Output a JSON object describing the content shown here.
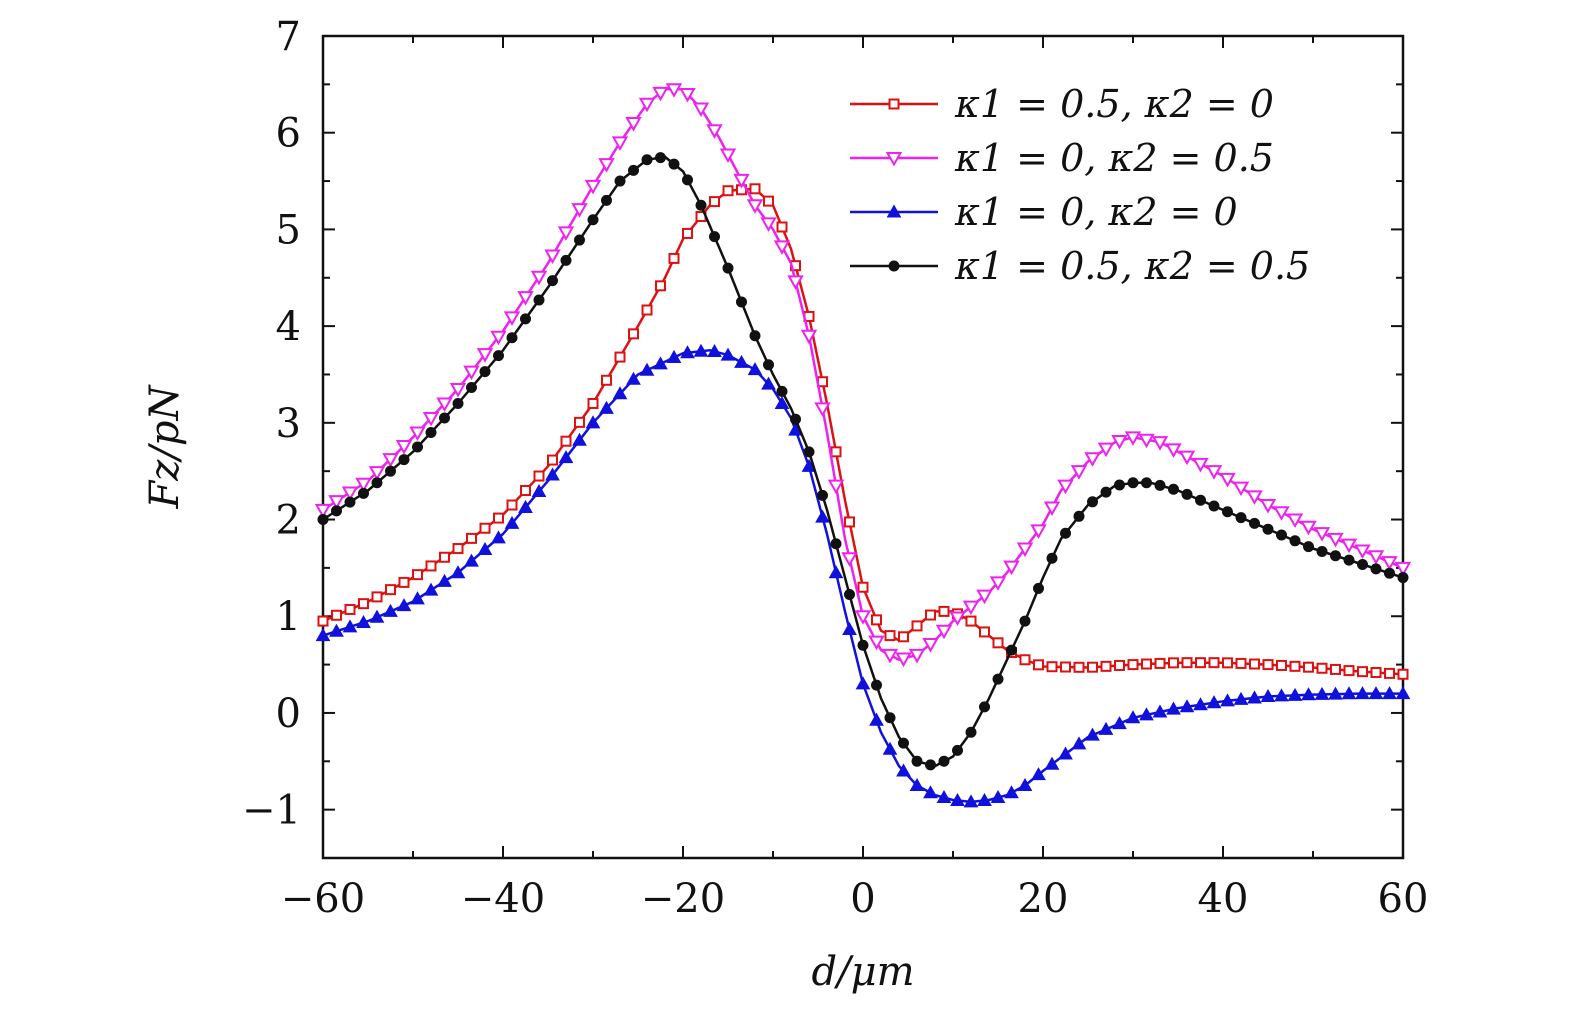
{
  "chart_data": {
    "type": "line",
    "title": "",
    "xlabel": "d/μm",
    "ylabel": "Fz/pN",
    "xlim": [
      -60,
      60
    ],
    "ylim": [
      -1.5,
      7
    ],
    "x_ticks": [
      -60,
      -40,
      -20,
      0,
      20,
      40,
      60
    ],
    "x_tick_labels": [
      "−60",
      "−40",
      "−20",
      "0",
      "20",
      "40",
      "60"
    ],
    "y_ticks": [
      -1,
      0,
      1,
      2,
      3,
      4,
      5,
      6,
      7
    ],
    "y_tick_labels": [
      "−1",
      "0",
      "1",
      "2",
      "3",
      "4",
      "5",
      "6",
      "7"
    ],
    "legend_position": "top-right",
    "grid": false,
    "series": [
      {
        "name": "κ1 = 0.5, κ2 = 0",
        "color": "#dd1111",
        "marker": "square-open",
        "x": [
          -60,
          -55,
          -50,
          -45,
          -40,
          -35,
          -30,
          -25,
          -22,
          -20,
          -17,
          -15,
          -12,
          -10,
          -8,
          -6,
          -4,
          -2,
          0,
          2,
          4,
          6,
          8,
          10,
          12,
          14,
          16,
          18,
          20,
          25,
          30,
          35,
          40,
          45,
          50,
          55,
          60
        ],
        "y": [
          0.95,
          1.15,
          1.4,
          1.7,
          2.05,
          2.55,
          3.2,
          4.0,
          4.5,
          4.9,
          5.25,
          5.4,
          5.42,
          5.25,
          4.8,
          4.1,
          3.2,
          2.2,
          1.3,
          0.85,
          0.75,
          0.9,
          1.05,
          1.05,
          0.95,
          0.8,
          0.65,
          0.55,
          0.48,
          0.47,
          0.5,
          0.52,
          0.52,
          0.5,
          0.47,
          0.43,
          0.4
        ]
      },
      {
        "name": "κ1 = 0, κ2 = 0.5",
        "color": "#ee22ee",
        "marker": "triangle-down-open",
        "x": [
          -60,
          -55,
          -50,
          -45,
          -40,
          -35,
          -30,
          -27,
          -24,
          -22,
          -20,
          -18,
          -16,
          -14,
          -12,
          -10,
          -8,
          -6,
          -4,
          -2,
          0,
          2,
          4,
          6,
          8,
          10,
          12,
          14,
          16,
          18,
          20,
          22,
          25,
          28,
          30,
          33,
          35,
          40,
          45,
          50,
          55,
          60
        ],
        "y": [
          2.1,
          2.4,
          2.85,
          3.35,
          3.95,
          4.65,
          5.45,
          5.9,
          6.3,
          6.45,
          6.45,
          6.25,
          5.95,
          5.6,
          5.25,
          5.0,
          4.65,
          3.9,
          2.9,
          1.8,
          1.0,
          0.65,
          0.55,
          0.6,
          0.75,
          0.95,
          1.1,
          1.25,
          1.45,
          1.7,
          1.95,
          2.3,
          2.6,
          2.8,
          2.85,
          2.8,
          2.7,
          2.45,
          2.15,
          1.9,
          1.7,
          1.5
        ]
      },
      {
        "name": "κ1 = 0, κ2 = 0",
        "color": "#1111dd",
        "marker": "triangle-up-filled",
        "x": [
          -60,
          -55,
          -50,
          -45,
          -40,
          -35,
          -30,
          -25,
          -20,
          -17,
          -15,
          -12,
          -10,
          -8,
          -6,
          -4,
          -2,
          0,
          2,
          4,
          6,
          8,
          10,
          12,
          14,
          16,
          18,
          20,
          25,
          30,
          35,
          40,
          45,
          50,
          55,
          60
        ],
        "y": [
          0.8,
          0.95,
          1.15,
          1.45,
          1.85,
          2.4,
          3.0,
          3.5,
          3.72,
          3.75,
          3.7,
          3.55,
          3.35,
          3.05,
          2.55,
          1.85,
          1.05,
          0.3,
          -0.2,
          -0.55,
          -0.75,
          -0.85,
          -0.9,
          -0.92,
          -0.9,
          -0.85,
          -0.75,
          -0.6,
          -0.25,
          -0.05,
          0.05,
          0.12,
          0.17,
          0.19,
          0.2,
          0.2
        ]
      },
      {
        "name": "κ1 = 0.5, κ2 = 0.5",
        "color": "#111111",
        "marker": "circle-filled",
        "x": [
          -60,
          -55,
          -50,
          -45,
          -40,
          -35,
          -30,
          -27,
          -24,
          -22,
          -20,
          -18,
          -15,
          -12,
          -10,
          -8,
          -6,
          -4,
          -2,
          0,
          2,
          4,
          6,
          8,
          10,
          12,
          14,
          16,
          18,
          20,
          22,
          25,
          28,
          30,
          32,
          35,
          40,
          45,
          50,
          55,
          60
        ],
        "y": [
          2.0,
          2.3,
          2.7,
          3.2,
          3.75,
          4.4,
          5.1,
          5.5,
          5.72,
          5.75,
          5.6,
          5.25,
          4.6,
          3.9,
          3.5,
          3.15,
          2.7,
          2.1,
          1.4,
          0.7,
          0.15,
          -0.25,
          -0.5,
          -0.55,
          -0.45,
          -0.2,
          0.15,
          0.55,
          0.95,
          1.4,
          1.8,
          2.15,
          2.35,
          2.38,
          2.38,
          2.3,
          2.1,
          1.9,
          1.7,
          1.55,
          1.4
        ]
      }
    ]
  }
}
